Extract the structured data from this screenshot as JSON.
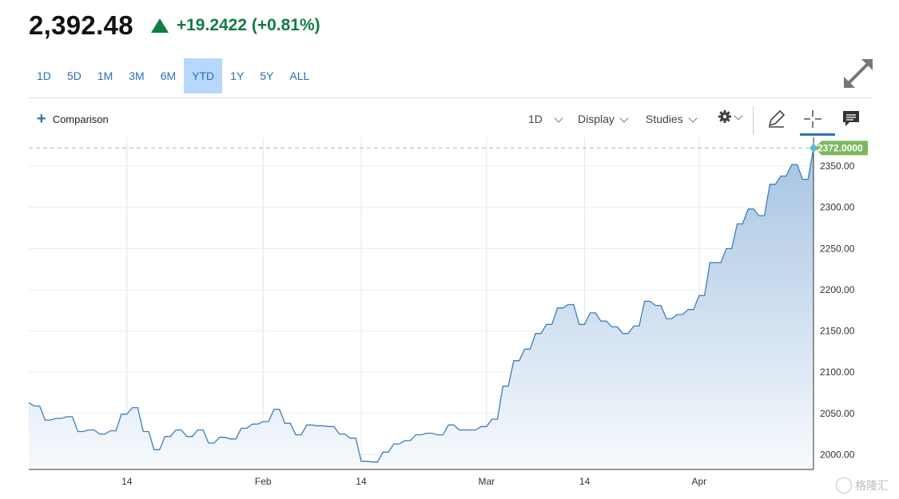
{
  "quote": {
    "price": "2,392.48",
    "change": "+19.2422 (+0.81%)",
    "change_color": "#0f7d44"
  },
  "ranges": [
    "1D",
    "5D",
    "1M",
    "3M",
    "6M",
    "YTD",
    "1Y",
    "5Y",
    "ALL"
  ],
  "active_range": "YTD",
  "toolbar": {
    "comparison_label": "Comparison",
    "interval_label": "1D",
    "display_label": "Display",
    "studies_label": "Studies",
    "icons": [
      "gear-icon",
      "pencil-icon",
      "crosshair-icon",
      "comment-icon"
    ]
  },
  "watermark": "格隆汇",
  "chart_data": {
    "type": "area",
    "title": "",
    "xlabel": "",
    "ylabel": "",
    "x_tick_labels": [
      "14",
      "Feb",
      "14",
      "Mar",
      "14",
      "Apr"
    ],
    "y_tick_labels": [
      "2000.00",
      "2050.00",
      "2100.00",
      "2150.00",
      "2200.00",
      "2250.00",
      "2300.00",
      "2350.00"
    ],
    "ylim": [
      1982,
      2385
    ],
    "last_value_label": "2372.0000",
    "reference_line": 2372,
    "grid": true,
    "line_color": "#3d7db8",
    "fill_top_color": "#a7c4e2",
    "last_label_color": "#7cb860",
    "series": [
      {
        "values": [
          2063,
          2059,
          2059,
          2042,
          2042,
          2044,
          2044,
          2046,
          2046,
          2028,
          2028,
          2030,
          2030,
          2025,
          2025,
          2029,
          2029,
          2049,
          2049,
          2057,
          2057,
          2028,
          2028,
          2006,
          2006,
          2022,
          2022,
          2030,
          2030,
          2022,
          2022,
          2030,
          2030,
          2014,
          2014,
          2021,
          2021,
          2019,
          2019,
          2032,
          2032,
          2037,
          2037,
          2040,
          2040,
          2055,
          2055,
          2038,
          2038,
          2024,
          2024,
          2036,
          2036,
          2035,
          2035,
          2034,
          2034,
          2025,
          2025,
          2020,
          2020,
          1992,
          1992,
          1991,
          1991,
          2003,
          2003,
          2013,
          2013,
          2017,
          2017,
          2024,
          2024,
          2026,
          2026,
          2024,
          2024,
          2036,
          2036,
          2030,
          2030,
          2030,
          2030,
          2034,
          2034,
          2043,
          2043,
          2083,
          2083,
          2114,
          2114,
          2128,
          2128,
          2147,
          2147,
          2158,
          2158,
          2178,
          2178,
          2182,
          2182,
          2158,
          2158,
          2172,
          2172,
          2162,
          2162,
          2155,
          2155,
          2147,
          2147,
          2156,
          2156,
          2186,
          2186,
          2181,
          2181,
          2165,
          2165,
          2170,
          2170,
          2176,
          2176,
          2193,
          2193,
          2233,
          2233,
          2233,
          2250,
          2250,
          2280,
          2280,
          2298,
          2298,
          2290,
          2290,
          2328,
          2328,
          2338,
          2338,
          2352,
          2352,
          2334,
          2334,
          2372
        ]
      }
    ]
  }
}
